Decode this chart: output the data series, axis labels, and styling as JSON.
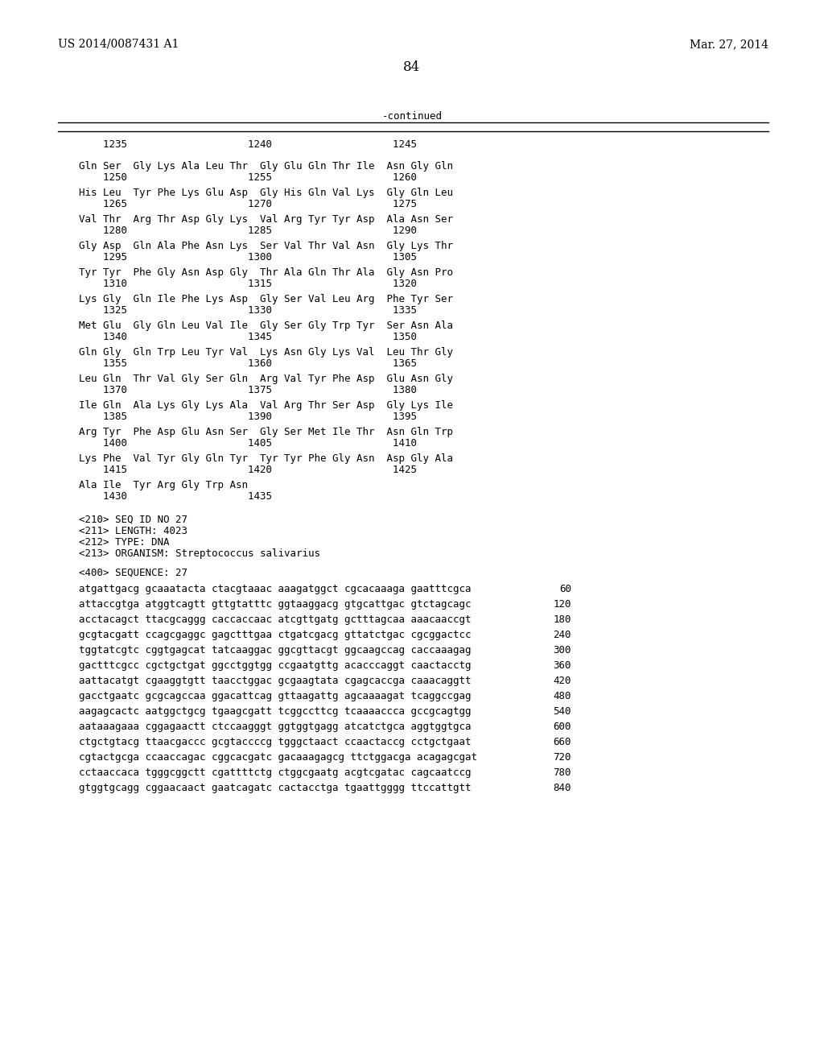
{
  "header_left": "US 2014/0087431 A1",
  "header_right": "Mar. 27, 2014",
  "page_number": "84",
  "continued_label": "-continued",
  "background_color": "#ffffff",
  "text_color": "#000000",
  "table_header": "    1235                    1240                    1245",
  "sequence_blocks": [
    {
      "aa": "Gln Ser  Gly Lys Ala Leu Thr  Gly Glu Gln Thr Ile  Asn Gly Gln",
      "num": "    1250                    1255                    1260"
    },
    {
      "aa": "His Leu  Tyr Phe Lys Glu Asp  Gly His Gln Val Lys  Gly Gln Leu",
      "num": "    1265                    1270                    1275"
    },
    {
      "aa": "Val Thr  Arg Thr Asp Gly Lys  Val Arg Tyr Tyr Asp  Ala Asn Ser",
      "num": "    1280                    1285                    1290"
    },
    {
      "aa": "Gly Asp  Gln Ala Phe Asn Lys  Ser Val Thr Val Asn  Gly Lys Thr",
      "num": "    1295                    1300                    1305"
    },
    {
      "aa": "Tyr Tyr  Phe Gly Asn Asp Gly  Thr Ala Gln Thr Ala  Gly Asn Pro",
      "num": "    1310                    1315                    1320"
    },
    {
      "aa": "Lys Gly  Gln Ile Phe Lys Asp  Gly Ser Val Leu Arg  Phe Tyr Ser",
      "num": "    1325                    1330                    1335"
    },
    {
      "aa": "Met Glu  Gly Gln Leu Val Ile  Gly Ser Gly Trp Tyr  Ser Asn Ala",
      "num": "    1340                    1345                    1350"
    },
    {
      "aa": "Gln Gly  Gln Trp Leu Tyr Val  Lys Asn Gly Lys Val  Leu Thr Gly",
      "num": "    1355                    1360                    1365"
    },
    {
      "aa": "Leu Gln  Thr Val Gly Ser Gln  Arg Val Tyr Phe Asp  Glu Asn Gly",
      "num": "    1370                    1375                    1380"
    },
    {
      "aa": "Ile Gln  Ala Lys Gly Lys Ala  Val Arg Thr Ser Asp  Gly Lys Ile",
      "num": "    1385                    1390                    1395"
    },
    {
      "aa": "Arg Tyr  Phe Asp Glu Asn Ser  Gly Ser Met Ile Thr  Asn Gln Trp",
      "num": "    1400                    1405                    1410"
    },
    {
      "aa": "Lys Phe  Val Tyr Gly Gln Tyr  Tyr Tyr Phe Gly Asn  Asp Gly Ala",
      "num": "    1415                    1420                    1425"
    },
    {
      "aa": "Ala Ile  Tyr Arg Gly Trp Asn",
      "num": "    1430                    1435"
    }
  ],
  "metadata_lines": [
    "<210> SEQ ID NO 27",
    "<211> LENGTH: 4023",
    "<212> TYPE: DNA",
    "<213> ORGANISM: Streptococcus salivarius"
  ],
  "sequence_label": "<400> SEQUENCE: 27",
  "dna_lines": [
    {
      "seq": "atgattgacg gcaaatacta ctacgtaaac aaagatggct cgcacaaaga gaatttcgca",
      "num": "60"
    },
    {
      "seq": "attaccgtga atggtcagtt gttgtatttc ggtaaggacg gtgcattgac gtctagcagc",
      "num": "120"
    },
    {
      "seq": "acctacagct ttacgcaggg caccaccaac atcgttgatg gctttagcaa aaacaaccgt",
      "num": "180"
    },
    {
      "seq": "gcgtacgatt ccagcgaggc gagctttgaa ctgatcgacg gttatctgac cgcggactcc",
      "num": "240"
    },
    {
      "seq": "tggtatcgtc cggtgagcat tatcaaggac ggcgttacgt ggcaagccag caccaaagag",
      "num": "300"
    },
    {
      "seq": "gactttcgcc cgctgctgat ggcctggtgg ccgaatgttg acacccaggt caactacctg",
      "num": "360"
    },
    {
      "seq": "aattacatgt cgaaggtgtt taacctggac gcgaagtata cgagcaccga caaacaggtt",
      "num": "420"
    },
    {
      "seq": "gacctgaatc gcgcagccaa ggacattcag gttaagattg agcaaaagat tcaggccgag",
      "num": "480"
    },
    {
      "seq": "aagagcactc aatggctgcg tgaagcgatt tcggccttcg tcaaaaccca gccgcagtgg",
      "num": "540"
    },
    {
      "seq": "aataaagaaa cggagaactt ctccaagggt ggtggtgagg atcatctgca aggtggtgca",
      "num": "600"
    },
    {
      "seq": "ctgctgtacg ttaacgaccc gcgtaccccg tgggctaact ccaactaccg cctgctgaat",
      "num": "660"
    },
    {
      "seq": "cgtactgcga ccaaccagac cggcacgatc gacaaagagcg ttctggacga acagagcgat",
      "num": "720"
    },
    {
      "seq": "cctaaccaca tgggcggctt cgattttctg ctggcgaatg acgtcgatac cagcaatccg",
      "num": "780"
    },
    {
      "seq": "gtggtgcagg cggaacaact gaatcagatc cactacctga tgaattgggg ttccattgtt",
      "num": "840"
    }
  ]
}
